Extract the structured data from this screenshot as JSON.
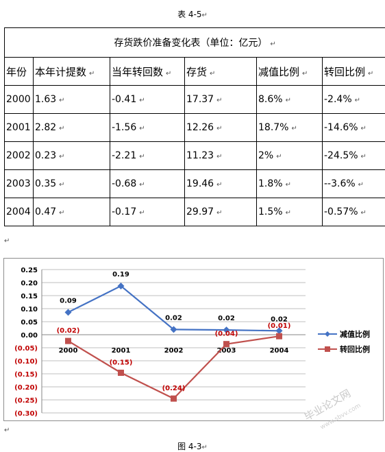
{
  "table_caption": "表 4-5",
  "table_title": "存货跌价准备变化表（单位：亿元）",
  "columns": [
    "年份",
    "本年计提数",
    "当年转回数",
    "存货",
    "减值比例",
    "转回比例"
  ],
  "rows": [
    [
      "2000",
      "1.63",
      "-0.41",
      "17.37",
      "8.6%",
      "-2.4%"
    ],
    [
      "2001",
      "2.82",
      "-1.56",
      "12.26",
      "18.7%",
      "-14.6%"
    ],
    [
      "2002",
      "0.23",
      "-2.21",
      "11.23",
      "2%",
      "-24.5%"
    ],
    [
      "2003",
      "0.35",
      "-0.68",
      "19.46",
      "1.8%",
      "--3.6%"
    ],
    [
      "2004",
      "0.47",
      "-0.17",
      "29.97",
      "1.5%",
      "-0.57%"
    ]
  ],
  "para_mark": "↵",
  "return_mark": "↵",
  "figure_caption": "图 4-3",
  "watermark": "毕业论文网",
  "watermark_url": "www.sbvv.com",
  "chart_data": {
    "type": "line",
    "categories": [
      "2000",
      "2001",
      "2002",
      "2003",
      "2004"
    ],
    "ylim": [
      -0.3,
      0.25
    ],
    "yticks": [
      0.25,
      0.2,
      0.15,
      0.1,
      0.05,
      0.0,
      -0.05,
      -0.1,
      -0.15,
      -0.2,
      -0.25,
      -0.3
    ],
    "ytick_labels": [
      "0.25",
      "0.20",
      "0.15",
      "0.10",
      "0.05",
      "0.00",
      "(0.05)",
      "(0.10)",
      "(0.15)",
      "(0.20)",
      "(0.25)",
      "(0.30)"
    ],
    "grid": true,
    "legend_position": "right",
    "series": [
      {
        "name": "减值比例",
        "color": "#4472c4",
        "marker": "diamond",
        "values": [
          0.086,
          0.187,
          0.02,
          0.018,
          0.015
        ],
        "labels": [
          "0.09",
          "0.19",
          "0.02",
          "0.02",
          "0.02"
        ]
      },
      {
        "name": "转回比例",
        "color": "#c0504d",
        "marker": "square",
        "values": [
          -0.024,
          -0.146,
          -0.245,
          -0.036,
          -0.0057
        ],
        "labels": [
          "(0.02)",
          "(0.15)",
          "(0.24)",
          "(0.04)",
          "(0.01)"
        ]
      }
    ]
  }
}
